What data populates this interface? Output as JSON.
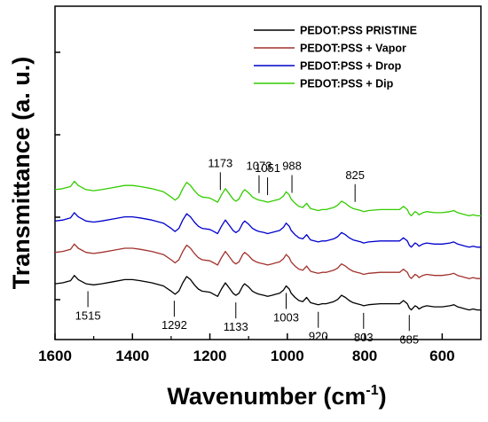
{
  "chart_data": {
    "type": "line",
    "xlabel": "Wavenumber (cm",
    "xlabel_superscript": "-1",
    "xlabel_suffix": ")",
    "ylabel": "Transmittance (a. u.)",
    "xlim": [
      1600,
      500
    ],
    "x_reversed": true,
    "x_ticks": [
      1600,
      1400,
      1200,
      1000,
      800,
      600
    ],
    "y_tick_labels_shown": false,
    "grid": false,
    "legend_position": "top-right",
    "series": [
      {
        "name": "PEDOT:PSS PRISTINE",
        "color": "#000000",
        "offset": 0,
        "x": [
          1600,
          1580,
          1560,
          1550,
          1540,
          1520,
          1500,
          1480,
          1450,
          1420,
          1400,
          1380,
          1350,
          1320,
          1300,
          1290,
          1280,
          1270,
          1260,
          1250,
          1240,
          1230,
          1220,
          1200,
          1190,
          1180,
          1170,
          1160,
          1150,
          1140,
          1133,
          1125,
          1115,
          1110,
          1100,
          1090,
          1080,
          1073,
          1060,
          1051,
          1040,
          1030,
          1020,
          1010,
          1003,
          995,
          990,
          980,
          970,
          960,
          950,
          940,
          930,
          920,
          910,
          900,
          880,
          870,
          860,
          850,
          840,
          830,
          820,
          810,
          803,
          790,
          760,
          730,
          710,
          700,
          690,
          685,
          680,
          670,
          665,
          660,
          650,
          640,
          620,
          600,
          580,
          570,
          560,
          550,
          540,
          530,
          520,
          510,
          500
        ],
        "y": [
          27,
          28,
          30,
          35,
          31,
          27,
          26,
          27,
          29,
          31,
          31,
          30,
          28,
          25,
          20,
          17,
          20,
          28,
          34,
          31,
          26,
          22,
          20,
          19,
          17,
          15,
          22,
          28,
          23,
          18,
          16,
          18,
          25,
          27,
          24,
          20,
          18,
          17,
          16,
          15,
          16,
          17,
          18,
          21,
          25,
          22,
          18,
          14,
          11,
          10,
          14,
          9,
          8,
          7,
          8,
          8,
          10,
          12,
          16,
          14,
          11,
          9,
          8,
          7,
          6,
          7,
          8,
          8,
          8,
          11,
          8,
          4,
          2,
          6,
          5,
          3,
          5,
          6,
          5,
          5,
          6,
          7,
          5,
          4,
          3,
          2,
          3,
          2,
          2
        ]
      },
      {
        "name": "PEDOT:PSS + Vapor",
        "color": "#a0322d",
        "offset": 30,
        "x": [
          1600,
          1580,
          1560,
          1550,
          1540,
          1520,
          1500,
          1480,
          1450,
          1420,
          1400,
          1380,
          1350,
          1320,
          1300,
          1290,
          1280,
          1270,
          1260,
          1250,
          1240,
          1230,
          1220,
          1200,
          1190,
          1180,
          1170,
          1160,
          1150,
          1140,
          1133,
          1125,
          1115,
          1110,
          1100,
          1090,
          1080,
          1073,
          1060,
          1051,
          1040,
          1030,
          1020,
          1010,
          1003,
          995,
          990,
          980,
          970,
          960,
          950,
          940,
          930,
          920,
          910,
          900,
          880,
          870,
          860,
          850,
          840,
          830,
          820,
          810,
          803,
          790,
          760,
          730,
          710,
          700,
          690,
          685,
          680,
          670,
          665,
          660,
          650,
          640,
          620,
          600,
          580,
          570,
          560,
          550,
          540,
          530,
          520,
          510,
          500
        ],
        "y": [
          27,
          28,
          30,
          35,
          31,
          27,
          26,
          27,
          29,
          31,
          31,
          30,
          28,
          25,
          20,
          17,
          20,
          28,
          34,
          31,
          26,
          22,
          20,
          19,
          17,
          15,
          22,
          28,
          23,
          18,
          16,
          18,
          25,
          27,
          24,
          20,
          18,
          17,
          16,
          15,
          16,
          17,
          18,
          21,
          25,
          22,
          18,
          14,
          11,
          10,
          14,
          9,
          8,
          7,
          8,
          8,
          10,
          12,
          16,
          14,
          11,
          9,
          8,
          7,
          6,
          7,
          8,
          8,
          8,
          11,
          8,
          4,
          2,
          6,
          5,
          3,
          5,
          6,
          5,
          5,
          6,
          7,
          5,
          4,
          3,
          2,
          3,
          2,
          2
        ]
      },
      {
        "name": "PEDOT:PSS + Drop",
        "color": "#0000cc",
        "offset": 60,
        "x": [
          1600,
          1580,
          1560,
          1550,
          1540,
          1520,
          1500,
          1480,
          1450,
          1420,
          1400,
          1380,
          1350,
          1320,
          1300,
          1290,
          1280,
          1270,
          1260,
          1250,
          1240,
          1230,
          1220,
          1200,
          1190,
          1180,
          1170,
          1160,
          1150,
          1140,
          1133,
          1125,
          1115,
          1110,
          1100,
          1090,
          1080,
          1073,
          1060,
          1051,
          1040,
          1030,
          1020,
          1010,
          1003,
          995,
          990,
          980,
          970,
          960,
          950,
          940,
          930,
          920,
          910,
          900,
          880,
          870,
          860,
          850,
          840,
          830,
          820,
          810,
          803,
          790,
          760,
          730,
          710,
          700,
          690,
          685,
          680,
          670,
          665,
          660,
          650,
          640,
          620,
          600,
          580,
          570,
          560,
          550,
          540,
          530,
          520,
          510,
          500
        ],
        "y": [
          27,
          28,
          30,
          35,
          31,
          27,
          26,
          27,
          29,
          31,
          31,
          30,
          28,
          25,
          20,
          17,
          20,
          28,
          34,
          31,
          26,
          22,
          20,
          19,
          17,
          15,
          22,
          28,
          23,
          18,
          16,
          18,
          25,
          27,
          24,
          20,
          18,
          17,
          16,
          15,
          16,
          17,
          18,
          21,
          25,
          22,
          18,
          14,
          11,
          10,
          14,
          9,
          8,
          7,
          8,
          8,
          10,
          12,
          16,
          14,
          11,
          9,
          8,
          7,
          6,
          7,
          8,
          8,
          8,
          11,
          8,
          4,
          2,
          6,
          5,
          3,
          5,
          6,
          5,
          5,
          6,
          7,
          5,
          4,
          3,
          2,
          3,
          2,
          2
        ]
      },
      {
        "name": "PEDOT:PSS + Dip",
        "color": "#33cc00",
        "offset": 90,
        "x": [
          1600,
          1580,
          1560,
          1550,
          1540,
          1520,
          1500,
          1480,
          1450,
          1420,
          1400,
          1380,
          1350,
          1320,
          1300,
          1290,
          1280,
          1270,
          1260,
          1250,
          1240,
          1230,
          1220,
          1200,
          1190,
          1180,
          1170,
          1160,
          1150,
          1140,
          1133,
          1125,
          1115,
          1110,
          1100,
          1090,
          1080,
          1073,
          1060,
          1051,
          1040,
          1030,
          1020,
          1010,
          1003,
          995,
          990,
          980,
          970,
          960,
          950,
          940,
          930,
          920,
          910,
          900,
          880,
          870,
          860,
          850,
          840,
          830,
          820,
          810,
          803,
          790,
          760,
          730,
          710,
          700,
          690,
          685,
          680,
          670,
          665,
          660,
          650,
          640,
          620,
          600,
          580,
          570,
          560,
          550,
          540,
          530,
          520,
          510,
          500
        ],
        "y": [
          27,
          28,
          30,
          35,
          31,
          27,
          26,
          27,
          29,
          31,
          31,
          30,
          28,
          25,
          20,
          17,
          20,
          28,
          34,
          31,
          26,
          22,
          20,
          19,
          17,
          15,
          22,
          28,
          23,
          18,
          16,
          18,
          25,
          27,
          24,
          20,
          18,
          17,
          16,
          15,
          16,
          17,
          18,
          21,
          25,
          22,
          18,
          14,
          11,
          10,
          14,
          9,
          8,
          7,
          8,
          8,
          10,
          12,
          16,
          14,
          11,
          9,
          8,
          7,
          6,
          7,
          8,
          8,
          8,
          11,
          8,
          4,
          2,
          6,
          5,
          3,
          5,
          6,
          5,
          5,
          6,
          7,
          5,
          4,
          3,
          2,
          3,
          2,
          2
        ]
      }
    ],
    "annotations": [
      {
        "label": "1515",
        "x": 1515,
        "side": "below",
        "series": 0
      },
      {
        "label": "1292",
        "x": 1292,
        "side": "below",
        "series": 0
      },
      {
        "label": "1133",
        "x": 1133,
        "side": "below",
        "series": 0
      },
      {
        "label": "1003",
        "x": 1003,
        "side": "below",
        "series": 0
      },
      {
        "label": "920",
        "x": 920,
        "side": "below",
        "series": 0
      },
      {
        "label": "803",
        "x": 803,
        "side": "below",
        "series": 0
      },
      {
        "label": "685",
        "x": 685,
        "side": "below",
        "series": 0
      },
      {
        "label": "1173",
        "x": 1173,
        "side": "above",
        "series": 3
      },
      {
        "label": "1073",
        "x": 1073,
        "side": "above",
        "series": 3
      },
      {
        "label": "1051",
        "x": 1051,
        "side": "above",
        "series": 3
      },
      {
        "label": "988",
        "x": 988,
        "side": "above",
        "series": 3
      },
      {
        "label": "825",
        "x": 825,
        "side": "above",
        "series": 3
      }
    ]
  }
}
